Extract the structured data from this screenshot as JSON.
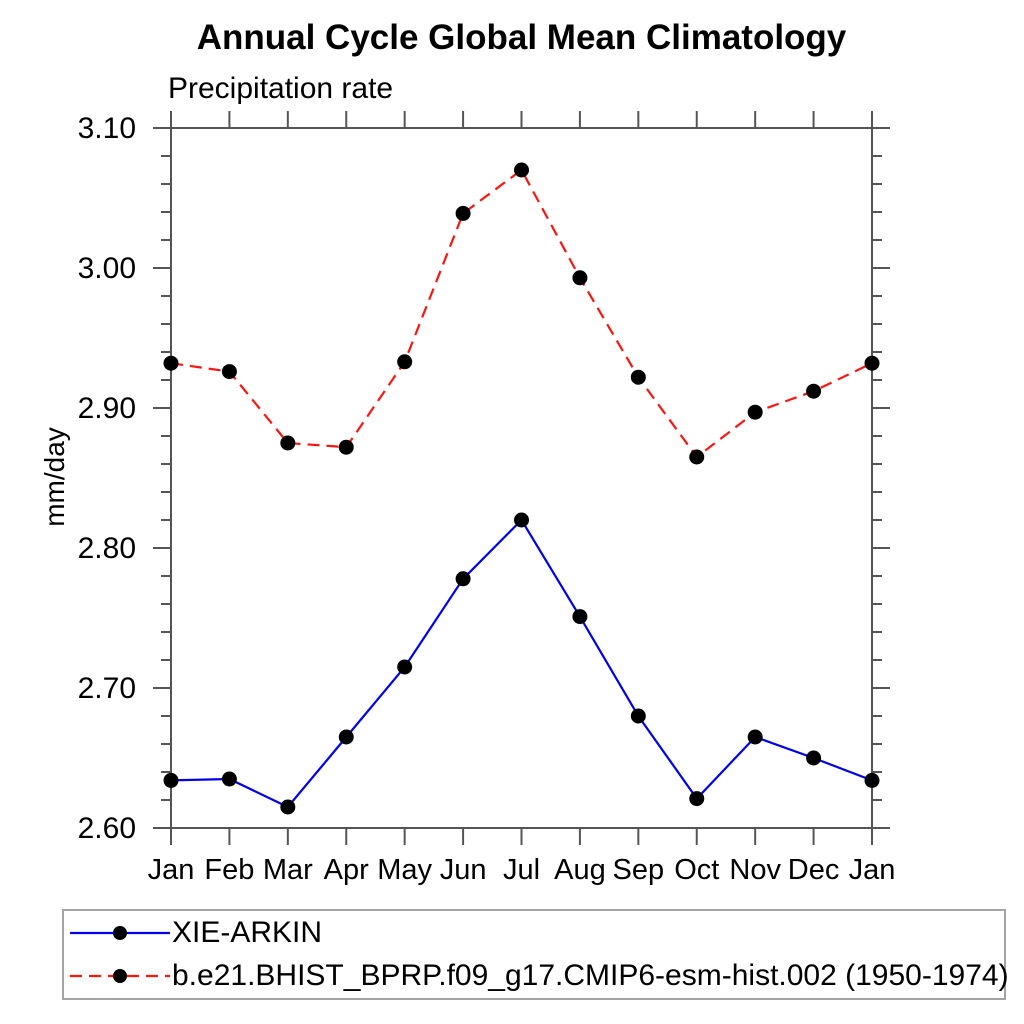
{
  "chart_data": {
    "type": "line",
    "title": "Annual Cycle Global Mean Climatology",
    "subtitle": "Precipitation rate",
    "ylabel": "mm/day",
    "xlabel": "",
    "categories": [
      "Jan",
      "Feb",
      "Mar",
      "Apr",
      "May",
      "Jun",
      "Jul",
      "Aug",
      "Sep",
      "Oct",
      "Nov",
      "Dec",
      "Jan"
    ],
    "ylim": [
      2.6,
      3.1
    ],
    "ytick_major_step": 0.1,
    "ytick_minor_step": 0.02,
    "ytick_labels": [
      "2.60",
      "2.70",
      "2.80",
      "2.90",
      "3.00",
      "3.10"
    ],
    "grid": false,
    "legend_position": "bottom box, full width",
    "axis_color": "#555555",
    "marker_color": "#000000",
    "series": [
      {
        "name": "XIE-ARKIN",
        "color": "#0000ee",
        "line_style": "solid",
        "marker": "filled-circle",
        "values": [
          2.634,
          2.635,
          2.615,
          2.665,
          2.715,
          2.778,
          2.82,
          2.751,
          2.68,
          2.621,
          2.665,
          2.65,
          2.634
        ]
      },
      {
        "name": "b.e21.BHIST_BPRP.f09_g17.CMIP6-esm-hist.002 (1950-1974)",
        "color": "#fb1510",
        "line_style": "dashed",
        "marker": "filled-circle",
        "values": [
          2.932,
          2.926,
          2.875,
          2.872,
          2.933,
          3.039,
          3.07,
          2.993,
          2.922,
          2.865,
          2.897,
          2.912,
          2.932
        ]
      }
    ]
  }
}
